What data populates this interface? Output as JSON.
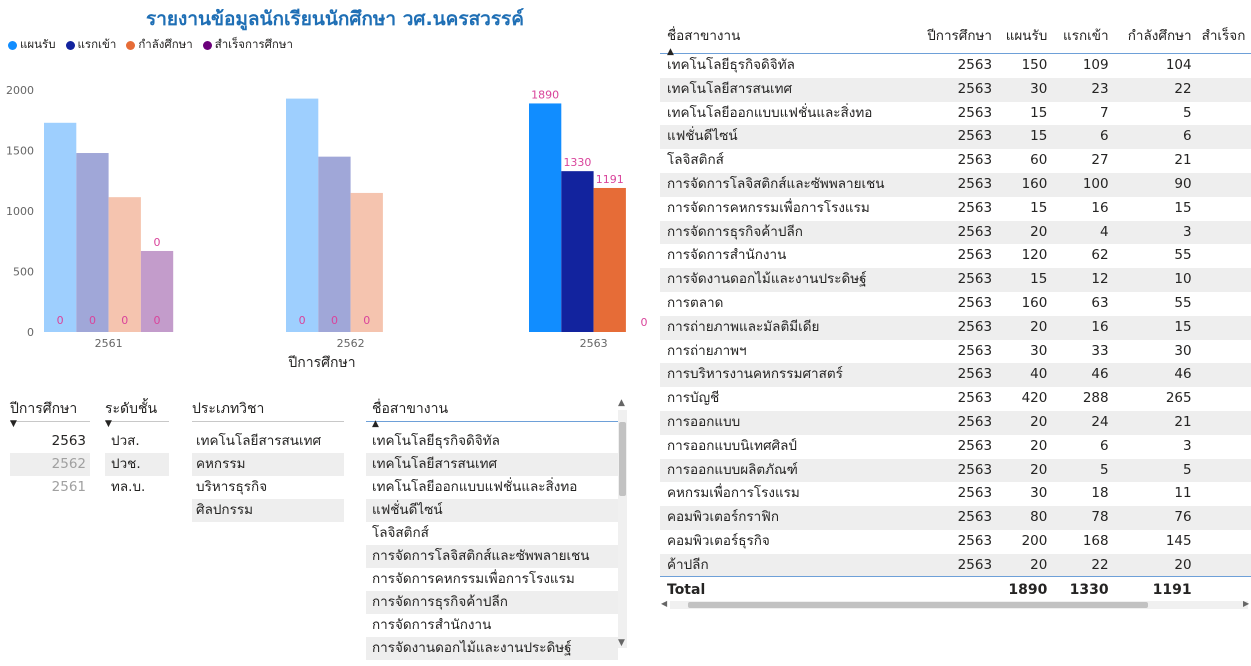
{
  "title": "รายงานข้อมูลนักเรียนนักศึกษา วศ.นครสวรรค์",
  "legend": [
    {
      "label": "แผนรับ",
      "color": "#118dff"
    },
    {
      "label": "แรกเข้า",
      "color": "#12239e"
    },
    {
      "label": "กำลังศึกษา",
      "color": "#e66c37"
    },
    {
      "label": "สำเร็จการศึกษา",
      "color": "#6b007b"
    }
  ],
  "chart_data": {
    "type": "bar",
    "xlabel": "ปีการศึกษา",
    "ylabel": "",
    "categories": [
      "2561",
      "2562",
      "2563"
    ],
    "y_ticks": [
      "0",
      "500",
      "1000",
      "1500",
      "2000"
    ],
    "ylim": [
      0,
      2150
    ],
    "selected_category": "2563",
    "faded_colors": [
      "#9ecffe",
      "#a0a7d8",
      "#f5c4af",
      "#c39ccb"
    ],
    "series": [
      {
        "name": "แผนรับ",
        "values": [
          1730,
          1930,
          1890
        ]
      },
      {
        "name": "แรกเข้า",
        "values": [
          1480,
          1450,
          1330
        ]
      },
      {
        "name": "กำลังศึกษา",
        "values": [
          1115,
          1150,
          1191
        ]
      },
      {
        "name": "สำเร็จการศึกษา",
        "values": [
          670,
          0,
          0
        ]
      }
    ],
    "data_labels": [
      [
        "",
        "",
        "",
        "0"
      ],
      [
        "",
        "",
        "",
        ""
      ],
      [
        "1890",
        "1330",
        "1191",
        "0"
      ]
    ],
    "inner_labels": [
      [
        "0",
        "0",
        "0",
        "0"
      ],
      [
        "0",
        "0",
        "0",
        ""
      ],
      [
        "",
        "",
        "",
        ""
      ]
    ]
  },
  "slicers": {
    "year": {
      "header": "ปีการศึกษา",
      "items": [
        {
          "label": "2563",
          "selected": true
        },
        {
          "label": "2562",
          "selected": false
        },
        {
          "label": "2561",
          "selected": false
        }
      ]
    },
    "level": {
      "header": "ระดับชั้น",
      "items": [
        "ปวส.",
        "ปวช.",
        "ทล.บ."
      ]
    },
    "type": {
      "header": "ประเภทวิชา",
      "items": [
        "เทคโนโลยีสารสนเทศ",
        "คหกรรม",
        "บริหารธุรกิจ",
        "ศิลปกรรม"
      ]
    },
    "branch": {
      "header": "ชื่อสาขางาน",
      "items": [
        "เทคโนโลยีธุรกิจดิจิทัล",
        "เทคโนโลยีสารสนเทศ",
        "เทคโนโลยีออกแบบแฟชั่นและสิ่งทอ",
        "แฟชั่นดีไซน์",
        "โลจิสติกส์",
        "การจัดการโลจิสติกส์และซัพพลายเชน",
        "การจัดการคหกรรมเพื่อการโรงแรม",
        "การจัดการธุรกิจค้าปลีก",
        "การจัดการสำนักงาน",
        "การจัดงานดอกไม้และงานประดิษฐ์"
      ]
    }
  },
  "table": {
    "headers": [
      "ชื่อสาขางาน",
      "ปีการศึกษา",
      "แผนรับ",
      "แรกเข้า",
      "กำลังศึกษา",
      "สำเร็จก"
    ],
    "rows": [
      [
        "เทคโนโลยีธุรกิจดิจิทัล",
        "2563",
        "150",
        "109",
        "104"
      ],
      [
        "เทคโนโลยีสารสนเทศ",
        "2563",
        "30",
        "23",
        "22"
      ],
      [
        "เทคโนโลยีออกแบบแฟชั่นและสิ่งทอ",
        "2563",
        "15",
        "7",
        "5"
      ],
      [
        "แฟชั่นดีไซน์",
        "2563",
        "15",
        "6",
        "6"
      ],
      [
        "โลจิสติกส์",
        "2563",
        "60",
        "27",
        "21"
      ],
      [
        "การจัดการโลจิสติกส์และซัพพลายเชน",
        "2563",
        "160",
        "100",
        "90"
      ],
      [
        "การจัดการคหกรรมเพื่อการโรงแรม",
        "2563",
        "15",
        "16",
        "15"
      ],
      [
        "การจัดการธุรกิจค้าปลีก",
        "2563",
        "20",
        "4",
        "3"
      ],
      [
        "การจัดการสำนักงาน",
        "2563",
        "120",
        "62",
        "55"
      ],
      [
        "การจัดงานดอกไม้และงานประดิษฐ์",
        "2563",
        "15",
        "12",
        "10"
      ],
      [
        "การตลาด",
        "2563",
        "160",
        "63",
        "55"
      ],
      [
        "การถ่ายภาพและมัลติมีเดีย",
        "2563",
        "20",
        "16",
        "15"
      ],
      [
        "การถ่ายภาพฯ",
        "2563",
        "30",
        "33",
        "30"
      ],
      [
        "การบริหารงานคหกรรมศาสตร์",
        "2563",
        "40",
        "46",
        "46"
      ],
      [
        "การบัญชี",
        "2563",
        "420",
        "288",
        "265"
      ],
      [
        "การออกแบบ",
        "2563",
        "20",
        "24",
        "21"
      ],
      [
        "การออกแบบนิเทศศิลป์",
        "2563",
        "20",
        "6",
        "3"
      ],
      [
        "การออกแบบผลิตภัณฑ์",
        "2563",
        "20",
        "5",
        "5"
      ],
      [
        "คหกรมเพื่อการโรงแรม",
        "2563",
        "30",
        "18",
        "11"
      ],
      [
        "คอมพิวเตอร์กราฟิก",
        "2563",
        "80",
        "78",
        "76"
      ],
      [
        "คอมพิวเตอร์ธุรกิจ",
        "2563",
        "200",
        "168",
        "145"
      ],
      [
        "ค้าปลีก",
        "2563",
        "20",
        "22",
        "20"
      ]
    ],
    "total": {
      "label": "Total",
      "plan": "1890",
      "entry": "1330",
      "studying": "1191"
    }
  }
}
